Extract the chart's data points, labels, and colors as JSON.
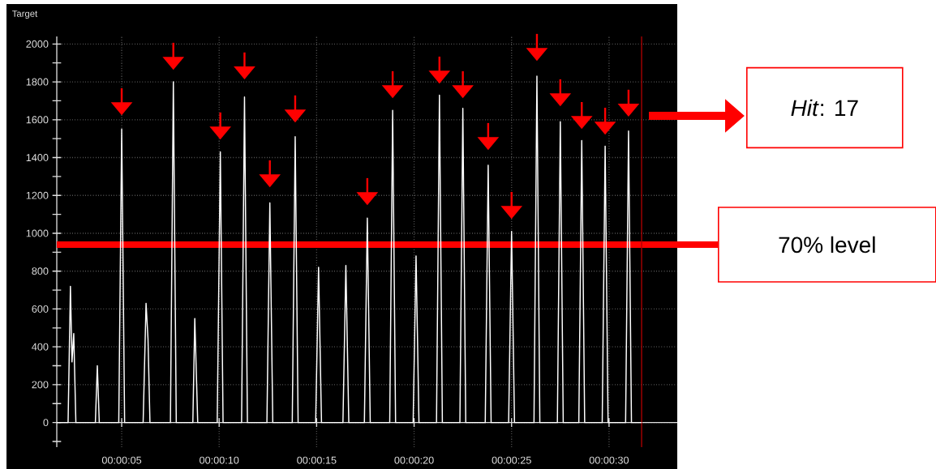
{
  "chart_data": {
    "type": "line",
    "ylabel": "Target",
    "xlim": [
      1.67,
      33.5
    ],
    "ylim": [
      -130,
      2040
    ],
    "xticks": [
      {
        "value": 5,
        "label": "00:00:05"
      },
      {
        "value": 10,
        "label": "00:00:10"
      },
      {
        "value": 15,
        "label": "00:00:15"
      },
      {
        "value": 20,
        "label": "00:00:20"
      },
      {
        "value": 25,
        "label": "00:00:25"
      },
      {
        "value": 30,
        "label": "00:00:30"
      }
    ],
    "yticks": [
      {
        "value": -100,
        "label": null
      },
      0,
      {
        "value": 100,
        "label": null
      },
      200,
      {
        "value": 300,
        "label": null
      },
      400,
      {
        "value": 500,
        "label": null
      },
      600,
      {
        "value": 700,
        "label": null
      },
      800,
      {
        "value": 900,
        "label": null
      },
      1000,
      {
        "value": 1100,
        "label": null
      },
      1200,
      {
        "value": 1300,
        "label": null
      },
      1400,
      {
        "value": 1500,
        "label": null
      },
      1600,
      {
        "value": 1700,
        "label": null
      },
      1800,
      {
        "value": 1900,
        "label": null
      },
      2000
    ],
    "grid": true,
    "series": [
      {
        "color": "#ffffff",
        "x": [
          1.67,
          2.25,
          2.37,
          2.45,
          2.54,
          2.65,
          3.65,
          3.75,
          3.85,
          4.85,
          5.0,
          5.15,
          6.1,
          6.25,
          6.35,
          6.45,
          7.5,
          7.65,
          7.8,
          8.65,
          8.75,
          8.9,
          9.9,
          10.06,
          10.2,
          11.15,
          11.3,
          11.45,
          12.45,
          12.6,
          12.75,
          13.75,
          13.9,
          14.05,
          14.95,
          15.1,
          15.25,
          16.35,
          16.5,
          16.65,
          17.45,
          17.6,
          17.75,
          18.75,
          18.9,
          19.05,
          19.95,
          20.1,
          20.25,
          21.15,
          21.3,
          21.45,
          22.35,
          22.5,
          22.65,
          23.65,
          23.8,
          23.95,
          24.85,
          25.0,
          25.15,
          26.15,
          26.3,
          26.45,
          27.35,
          27.5,
          27.65,
          28.45,
          28.6,
          28.75,
          29.65,
          29.8,
          29.95,
          30.85,
          31.0,
          31.15,
          31.67
        ],
        "values": [
          0,
          0,
          720,
          320,
          470,
          0,
          0,
          300,
          0,
          0,
          1550,
          0,
          0,
          630,
          440,
          0,
          0,
          1800,
          0,
          0,
          550,
          0,
          0,
          1430,
          0,
          0,
          1720,
          0,
          0,
          1160,
          0,
          0,
          1510,
          0,
          0,
          820,
          0,
          0,
          830,
          0,
          0,
          1080,
          0,
          0,
          1650,
          0,
          0,
          880,
          0,
          0,
          1730,
          0,
          0,
          1660,
          0,
          0,
          1360,
          0,
          0,
          1010,
          0,
          0,
          1830,
          0,
          0,
          1590,
          0,
          0,
          1490,
          0,
          0,
          1460,
          0,
          0,
          1540,
          0,
          0
        ]
      },
      {
        "type": "scatter",
        "marker": "triangle",
        "color": "#ff0000",
        "x": [
          5.0,
          7.65,
          10.06,
          11.3,
          12.6,
          13.9,
          17.6,
          18.9,
          21.3,
          22.5,
          23.8,
          25.0,
          26.3,
          27.5,
          28.6,
          29.8,
          31.0
        ],
        "values": [
          1658,
          1898,
          1530,
          1847,
          1277,
          1620,
          1183,
          1748,
          1825,
          1748,
          1474,
          1110,
          1945,
          1705,
          1585,
          1555,
          1650
        ]
      }
    ],
    "ref_lines": [
      {
        "axis": "y",
        "value": 940,
        "label": "70% level",
        "color": "#ff0000"
      },
      {
        "axis": "x",
        "value": 31.67,
        "color": "#b00000"
      }
    ],
    "annotations": [
      "*Hit*: 17"
    ]
  }
}
